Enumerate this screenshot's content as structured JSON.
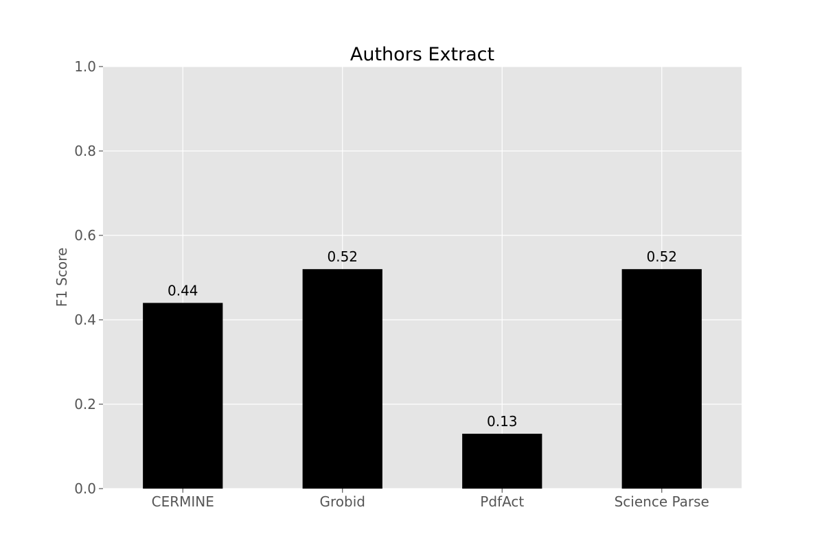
{
  "chart_data": {
    "type": "bar",
    "title": "Authors Extract",
    "xlabel": "",
    "ylabel": "F1 Score",
    "categories": [
      "CERMINE",
      "Grobid",
      "PdfAct",
      "Science Parse"
    ],
    "values": [
      0.44,
      0.52,
      0.13,
      0.52
    ],
    "value_labels": [
      "0.44",
      "0.52",
      "0.13",
      "0.52"
    ],
    "ylim": [
      0,
      1.0
    ],
    "yticks": [
      0.0,
      0.2,
      0.4,
      0.6,
      0.8,
      1.0
    ],
    "ytick_labels": [
      "0.0",
      "0.2",
      "0.4",
      "0.6",
      "0.8",
      "1.0"
    ],
    "grid": true,
    "legend": "none",
    "colors": {
      "bar": "#000000",
      "plot_background": "#e5e5e5",
      "grid": "#ffffff"
    }
  }
}
